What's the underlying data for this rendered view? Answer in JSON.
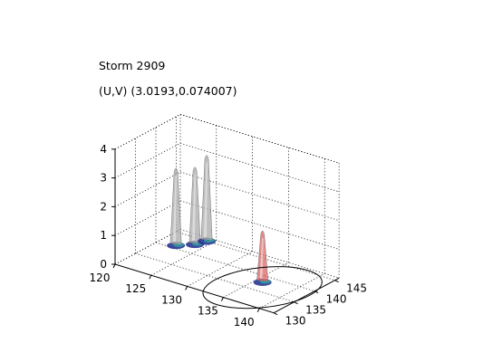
{
  "header": {
    "title": "Storm 2909",
    "subtitle": "(U,V) (3.0193,0.074007)"
  },
  "chart_data": {
    "type": "surface",
    "title": "Storm 2909",
    "subtitle": "(U,V) (3.0193,0.074007)",
    "xlabel": "",
    "ylabel": "",
    "zlabel": "",
    "x_ticks": [
      "120",
      "125",
      "130",
      "135",
      "140"
    ],
    "y_ticks": [
      "130",
      "135",
      "140",
      "145"
    ],
    "z_ticks": [
      "0",
      "1",
      "2",
      "3",
      "4"
    ],
    "xlim": [
      120,
      142
    ],
    "ylim": [
      130,
      146
    ],
    "zlim": [
      0,
      4
    ],
    "grid": true,
    "peaks": [
      {
        "x": 122.5,
        "y": 140.5,
        "z": 2.8,
        "color": "#a9a9a9"
      },
      {
        "x": 124.0,
        "y": 142.5,
        "z": 2.8,
        "color": "#a9a9a9"
      },
      {
        "x": 124.5,
        "y": 144.5,
        "z": 3.1,
        "color": "#a9a9a9"
      },
      {
        "x": 136.2,
        "y": 137.5,
        "z": 1.9,
        "color": "#e06464"
      }
    ],
    "track_circle": {
      "center_x": 136.2,
      "center_y": 136.6,
      "radius_label": ""
    },
    "colors": {
      "surface": "#a9a9a9",
      "base_low": "#1c2a8a",
      "base_mid": "#2aa6a6",
      "highlight": "#e06464",
      "grid": "#000000"
    }
  }
}
